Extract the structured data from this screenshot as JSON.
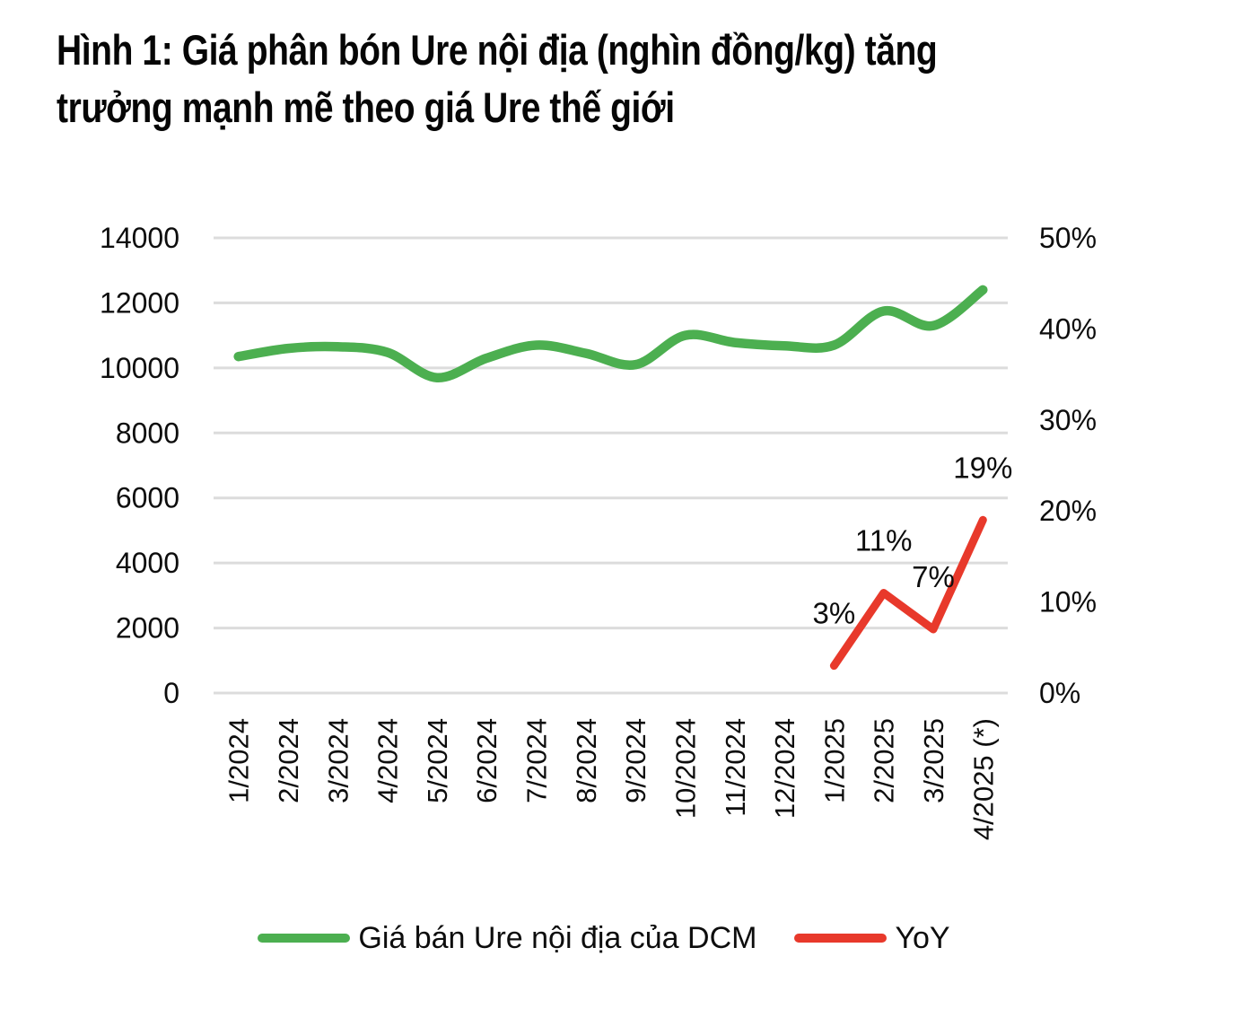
{
  "title": {
    "line1": "Hình 1: Giá phân bón Ure nội địa (nghìn đồng/kg) tăng",
    "line2": "trưởng mạnh mẽ theo giá Ure thế giới"
  },
  "chart_data": {
    "type": "line",
    "categories": [
      "1/2024",
      "2/2024",
      "3/2024",
      "4/2024",
      "5/2024",
      "6/2024",
      "7/2024",
      "8/2024",
      "9/2024",
      "10/2024",
      "11/2024",
      "12/2024",
      "1/2025",
      "2/2025",
      "3/2025",
      "4/2025 (*)"
    ],
    "series": [
      {
        "name": "Giá bán Ure nội địa của DCM",
        "color": "#4CAF50",
        "axis": "left",
        "smooth": true,
        "values": [
          10350,
          10600,
          10650,
          10480,
          9700,
          10300,
          10700,
          10450,
          10100,
          11000,
          10780,
          10680,
          10700,
          11750,
          11300,
          12400
        ]
      },
      {
        "name": "YoY",
        "color": "#E8392B",
        "axis": "right",
        "smooth": false,
        "values": [
          null,
          null,
          null,
          null,
          null,
          null,
          null,
          null,
          null,
          null,
          null,
          null,
          3,
          11,
          7,
          19
        ],
        "point_labels": {
          "12": "3%",
          "13": "11%",
          "14": "7%",
          "15": "19%"
        }
      }
    ],
    "left_axis": {
      "min": 0,
      "max": 14000,
      "tick_values": [
        0,
        2000,
        4000,
        6000,
        8000,
        10000,
        12000,
        14000
      ],
      "tick_labels": [
        "0",
        "2000",
        "4000",
        "6000",
        "8000",
        "10000",
        "12000",
        "14000"
      ]
    },
    "right_axis": {
      "min": 0,
      "max": 50,
      "tick_values": [
        0,
        10,
        20,
        30,
        40,
        50
      ],
      "tick_labels": [
        "0%",
        "10%",
        "20%",
        "30%",
        "40%",
        "50%"
      ]
    },
    "grid": true,
    "grid_color": "#DCDCDC",
    "legend_position": "bottom"
  }
}
